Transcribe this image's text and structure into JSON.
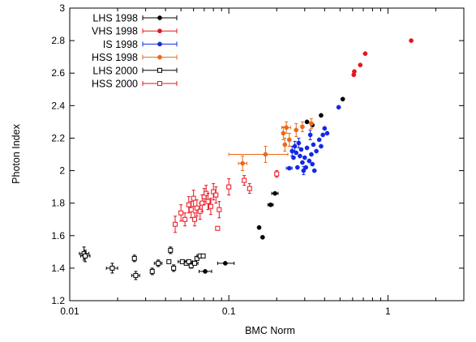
{
  "chart_data": {
    "type": "scatter",
    "title": "",
    "xlabel": "BMC Norm",
    "ylabel": "Photon Index",
    "xscale": "log",
    "xlim": [
      0.01,
      3
    ],
    "ylim": [
      1.2,
      3.0
    ],
    "xticks": [
      0.01,
      0.1,
      1
    ],
    "xtick_labels": [
      "0.01",
      "0.1",
      "1"
    ],
    "yticks": [
      1.2,
      1.4,
      1.6,
      1.8,
      2.0,
      2.2,
      2.4,
      2.6,
      2.8,
      3.0
    ],
    "ytick_labels": [
      "1.2",
      "1.4",
      "1.6",
      "1.8",
      "2",
      "2.2",
      "2.4",
      "2.6",
      "2.8",
      "3"
    ],
    "grid": false,
    "legend_position": "top-left",
    "series": [
      {
        "name": "LHS 1998",
        "color": "#000000",
        "marker": "filled-circle",
        "points": [
          {
            "x": 0.071,
            "y": 1.38,
            "xerr": [
              0.065,
              0.078
            ],
            "yerr": [
              1.375,
              1.385
            ]
          },
          {
            "x": 0.095,
            "y": 1.43,
            "xerr": [
              0.085,
              0.108
            ],
            "yerr": [
              1.425,
              1.435
            ]
          },
          {
            "x": 0.155,
            "y": 1.65
          },
          {
            "x": 0.163,
            "y": 1.59
          },
          {
            "x": 0.183,
            "y": 1.79,
            "xerr": [
              0.176,
              0.19
            ]
          },
          {
            "x": 0.195,
            "y": 1.86,
            "xerr": [
              0.186,
              0.204
            ]
          },
          {
            "x": 0.31,
            "y": 2.3
          },
          {
            "x": 0.335,
            "y": 2.28
          },
          {
            "x": 0.38,
            "y": 2.34
          },
          {
            "x": 0.52,
            "y": 2.44
          }
        ]
      },
      {
        "name": "VHS 1998",
        "color": "#e8141e",
        "marker": "filled-circle",
        "points": [
          {
            "x": 0.61,
            "y": 2.59
          },
          {
            "x": 0.615,
            "y": 2.61
          },
          {
            "x": 0.67,
            "y": 2.65
          },
          {
            "x": 0.72,
            "y": 2.72
          },
          {
            "x": 1.4,
            "y": 2.8
          }
        ]
      },
      {
        "name": "IS 1998",
        "color": "#1428e6",
        "marker": "filled-circle",
        "points": [
          {
            "x": 0.24,
            "y": 2.015,
            "xerr": [
              0.23,
              0.25
            ]
          },
          {
            "x": 0.25,
            "y": 2.12,
            "yerr": [
              2.09,
              2.15
            ]
          },
          {
            "x": 0.255,
            "y": 2.08
          },
          {
            "x": 0.26,
            "y": 2.15,
            "yerr": [
              2.12,
              2.18
            ]
          },
          {
            "x": 0.265,
            "y": 2.11
          },
          {
            "x": 0.27,
            "y": 2.02
          },
          {
            "x": 0.275,
            "y": 2.17,
            "yerr": [
              2.14,
              2.2
            ]
          },
          {
            "x": 0.28,
            "y": 2.09
          },
          {
            "x": 0.285,
            "y": 2.13
          },
          {
            "x": 0.29,
            "y": 2.05
          },
          {
            "x": 0.295,
            "y": 2.0,
            "yerr": [
              1.975,
              2.025
            ]
          },
          {
            "x": 0.3,
            "y": 2.08
          },
          {
            "x": 0.305,
            "y": 2.02
          },
          {
            "x": 0.31,
            "y": 2.14
          },
          {
            "x": 0.32,
            "y": 2.06
          },
          {
            "x": 0.325,
            "y": 2.22,
            "yerr": [
              2.19,
              2.25
            ]
          },
          {
            "x": 0.33,
            "y": 2.1
          },
          {
            "x": 0.335,
            "y": 2.04
          },
          {
            "x": 0.34,
            "y": 2.16
          },
          {
            "x": 0.345,
            "y": 2.0
          },
          {
            "x": 0.355,
            "y": 2.12
          },
          {
            "x": 0.37,
            "y": 2.19
          },
          {
            "x": 0.38,
            "y": 2.15
          },
          {
            "x": 0.39,
            "y": 2.22
          },
          {
            "x": 0.4,
            "y": 2.26
          },
          {
            "x": 0.415,
            "y": 2.23
          },
          {
            "x": 0.49,
            "y": 2.39
          }
        ]
      },
      {
        "name": "HSS 1998",
        "color": "#ea6a16",
        "marker": "filled-circle",
        "points": [
          {
            "x": 0.122,
            "y": 2.045,
            "xerr": [
              0.115,
              0.13
            ],
            "yerr": [
              2.0,
              2.09
            ]
          },
          {
            "x": 0.17,
            "y": 2.1,
            "xerr": [
              0.1,
              0.235
            ],
            "yerr": [
              2.05,
              2.15
            ]
          },
          {
            "x": 0.22,
            "y": 2.23,
            "yerr": [
              2.19,
              2.27
            ]
          },
          {
            "x": 0.225,
            "y": 2.16,
            "yerr": [
              2.12,
              2.2
            ]
          },
          {
            "x": 0.23,
            "y": 2.265,
            "xerr": [
              0.215,
              0.245
            ],
            "yerr": [
              2.23,
              2.3
            ]
          },
          {
            "x": 0.24,
            "y": 2.19,
            "yerr": [
              2.15,
              2.23
            ]
          },
          {
            "x": 0.265,
            "y": 2.25,
            "yerr": [
              2.21,
              2.29
            ]
          },
          {
            "x": 0.29,
            "y": 2.27,
            "yerr": [
              2.24,
              2.3
            ]
          },
          {
            "x": 0.33,
            "y": 2.29,
            "yerr": [
              2.26,
              2.32
            ]
          }
        ]
      },
      {
        "name": "LHS 2000",
        "color": "#000000",
        "marker": "open-square",
        "points": [
          {
            "x": 0.0123,
            "y": 1.49,
            "xerr": [
              0.0115,
              0.0132
            ],
            "yerr": [
              1.45,
              1.53
            ]
          },
          {
            "x": 0.0125,
            "y": 1.475,
            "xerr": [
              0.0117,
              0.0134
            ],
            "yerr": [
              1.44,
              1.51
            ]
          },
          {
            "x": 0.0185,
            "y": 1.4,
            "xerr": [
              0.017,
              0.02
            ],
            "yerr": [
              1.37,
              1.43
            ]
          },
          {
            "x": 0.0255,
            "y": 1.46,
            "yerr": [
              1.44,
              1.48
            ]
          },
          {
            "x": 0.026,
            "y": 1.355,
            "xerr": [
              0.0245,
              0.0275
            ],
            "yerr": [
              1.33,
              1.38
            ]
          },
          {
            "x": 0.033,
            "y": 1.38,
            "yerr": [
              1.36,
              1.4
            ]
          },
          {
            "x": 0.036,
            "y": 1.43,
            "xerr": [
              0.034,
              0.038
            ],
            "yerr": [
              1.41,
              1.45
            ]
          },
          {
            "x": 0.042,
            "y": 1.44
          },
          {
            "x": 0.043,
            "y": 1.51,
            "yerr": [
              1.49,
              1.53
            ]
          },
          {
            "x": 0.045,
            "y": 1.4,
            "yerr": [
              1.38,
              1.42
            ]
          },
          {
            "x": 0.051,
            "y": 1.44,
            "xerr": [
              0.048,
              0.054
            ]
          },
          {
            "x": 0.054,
            "y": 1.43
          },
          {
            "x": 0.056,
            "y": 1.44,
            "xerr": [
              0.053,
              0.059
            ]
          },
          {
            "x": 0.058,
            "y": 1.415,
            "yerr": [
              1.4,
              1.43
            ]
          },
          {
            "x": 0.061,
            "y": 1.43,
            "xerr": [
              0.058,
              0.064
            ]
          },
          {
            "x": 0.063,
            "y": 1.46
          },
          {
            "x": 0.066,
            "y": 1.475,
            "xerr": [
              0.063,
              0.069
            ]
          },
          {
            "x": 0.069,
            "y": 1.475
          }
        ]
      },
      {
        "name": "HSS 2000",
        "color": "#e8141e",
        "marker": "open-square",
        "points": [
          {
            "x": 0.046,
            "y": 1.67,
            "yerr": [
              1.62,
              1.72
            ]
          },
          {
            "x": 0.05,
            "y": 1.74,
            "yerr": [
              1.69,
              1.79
            ]
          },
          {
            "x": 0.053,
            "y": 1.7,
            "yerr": [
              1.66,
              1.74
            ]
          },
          {
            "x": 0.056,
            "y": 1.79,
            "yerr": [
              1.74,
              1.84
            ]
          },
          {
            "x": 0.058,
            "y": 1.76,
            "yerr": [
              1.71,
              1.81
            ]
          },
          {
            "x": 0.06,
            "y": 1.83,
            "yerr": [
              1.78,
              1.88
            ]
          },
          {
            "x": 0.061,
            "y": 1.7,
            "yerr": [
              1.66,
              1.74
            ]
          },
          {
            "x": 0.063,
            "y": 1.77,
            "yerr": [
              1.72,
              1.82
            ]
          },
          {
            "x": 0.066,
            "y": 1.75,
            "yerr": [
              1.7,
              1.8
            ]
          },
          {
            "x": 0.068,
            "y": 1.8,
            "yerr": [
              1.75,
              1.85
            ]
          },
          {
            "x": 0.07,
            "y": 1.84,
            "yerr": [
              1.79,
              1.89
            ]
          },
          {
            "x": 0.072,
            "y": 1.86,
            "yerr": [
              1.81,
              1.91
            ]
          },
          {
            "x": 0.074,
            "y": 1.81,
            "yerr": [
              1.76,
              1.86
            ]
          },
          {
            "x": 0.077,
            "y": 1.78,
            "yerr": [
              1.73,
              1.83
            ]
          },
          {
            "x": 0.08,
            "y": 1.87,
            "yerr": [
              1.82,
              1.92
            ]
          },
          {
            "x": 0.083,
            "y": 1.85,
            "yerr": [
              1.8,
              1.9
            ]
          },
          {
            "x": 0.087,
            "y": 1.76,
            "yerr": [
              1.71,
              1.81
            ]
          },
          {
            "x": 0.085,
            "y": 1.645
          },
          {
            "x": 0.1,
            "y": 1.9,
            "yerr": [
              1.85,
              1.95
            ]
          },
          {
            "x": 0.125,
            "y": 1.94,
            "yerr": [
              1.91,
              1.97
            ]
          },
          {
            "x": 0.135,
            "y": 1.89,
            "yerr": [
              1.86,
              1.92
            ]
          },
          {
            "x": 0.2,
            "y": 1.98,
            "yerr": [
              1.96,
              2.0
            ]
          }
        ]
      }
    ]
  }
}
